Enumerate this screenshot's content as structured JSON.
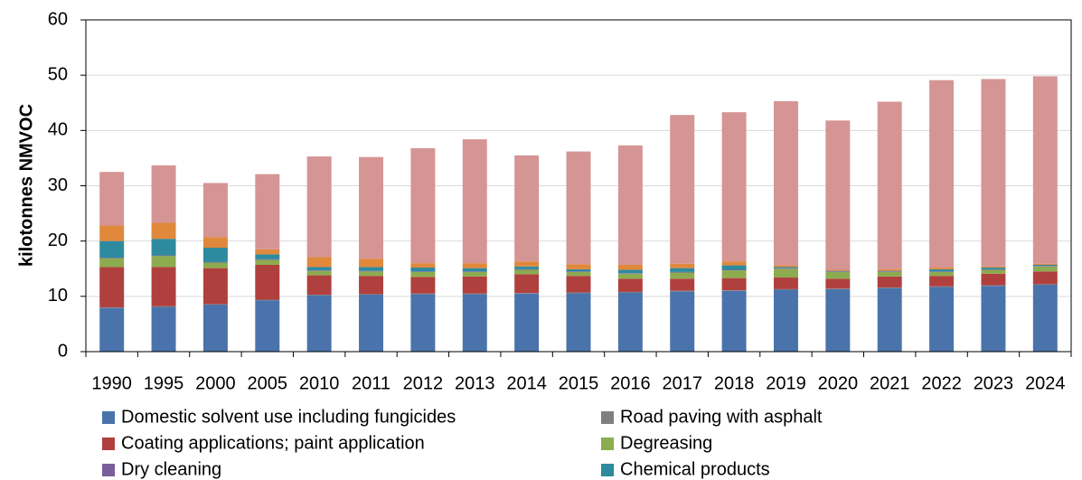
{
  "chart_data": {
    "type": "stacked_bar",
    "y_label": "kilotonnes NMVOC",
    "categories": [
      "1990",
      "1995",
      "2000",
      "2005",
      "2010",
      "2011",
      "2012",
      "2013",
      "2014",
      "2015",
      "2016",
      "2017",
      "2018",
      "2019",
      "2020",
      "2021",
      "2022",
      "2023",
      "2024"
    ],
    "ylim": [
      0,
      60
    ],
    "yticks": [
      0,
      10,
      20,
      30,
      40,
      50,
      60
    ],
    "grid": true,
    "series": [
      {
        "name": "Domestic solvent use including fungicides",
        "color": "#4a73ab",
        "values": [
          7.9,
          8.1,
          8.5,
          9.3,
          10.2,
          10.3,
          10.4,
          10.4,
          10.5,
          10.6,
          10.7,
          10.9,
          11.0,
          11.2,
          11.3,
          11.5,
          11.7,
          11.9,
          12.1
        ]
      },
      {
        "name": "Road paving with asphalt",
        "color": "#7f7f7f",
        "values": [
          0.1,
          0.1,
          0.1,
          0.1,
          0.1,
          0.1,
          0.1,
          0.1,
          0.1,
          0.1,
          0.1,
          0.1,
          0.1,
          0.1,
          0.1,
          0.1,
          0.1,
          0.1,
          0.1
        ]
      },
      {
        "name": "Coating applications; paint application",
        "color": "#b0403e",
        "values": [
          7.3,
          7.1,
          6.5,
          6.3,
          3.5,
          3.3,
          3.0,
          3.1,
          3.4,
          3.0,
          2.4,
          2.2,
          2.2,
          2.1,
          1.8,
          2.0,
          1.9,
          2.1,
          2.3
        ]
      },
      {
        "name": "Degreasing",
        "color": "#8dab4f",
        "values": [
          1.6,
          2.0,
          1.0,
          0.9,
          0.8,
          0.8,
          0.9,
          0.8,
          0.8,
          0.7,
          0.9,
          1.1,
          1.4,
          1.6,
          1.2,
          0.8,
          0.7,
          0.7,
          0.9
        ]
      },
      {
        "name": "Dry cleaning",
        "color": "#7a5e9c",
        "values": [
          0.1,
          0.1,
          0.1,
          0.1,
          0.1,
          0.1,
          0.1,
          0.1,
          0.1,
          0.1,
          0.1,
          0.1,
          0.1,
          0.1,
          0.1,
          0.1,
          0.1,
          0.1,
          0.1
        ]
      },
      {
        "name": "Chemical products",
        "color": "#2e8a9e",
        "values": [
          3.0,
          3.0,
          2.6,
          0.9,
          0.6,
          0.7,
          0.7,
          0.6,
          0.5,
          0.4,
          0.6,
          0.7,
          0.8,
          0.2,
          0.1,
          0.1,
          0.4,
          0.3,
          0.2
        ]
      },
      {
        "color": "#e0883b",
        "values": [
          2.8,
          2.9,
          1.9,
          0.9,
          1.8,
          1.5,
          0.8,
          0.9,
          0.9,
          0.9,
          0.9,
          0.8,
          0.7,
          0.3,
          0.2,
          0.3,
          0.3,
          0.2,
          0.2
        ]
      },
      {
        "color": "#d59594",
        "values": [
          9.7,
          10.4,
          9.8,
          13.6,
          18.2,
          18.4,
          20.8,
          22.4,
          19.2,
          20.4,
          21.6,
          26.9,
          27.0,
          29.7,
          27.0,
          30.3,
          33.9,
          33.9,
          33.9
        ]
      }
    ]
  }
}
